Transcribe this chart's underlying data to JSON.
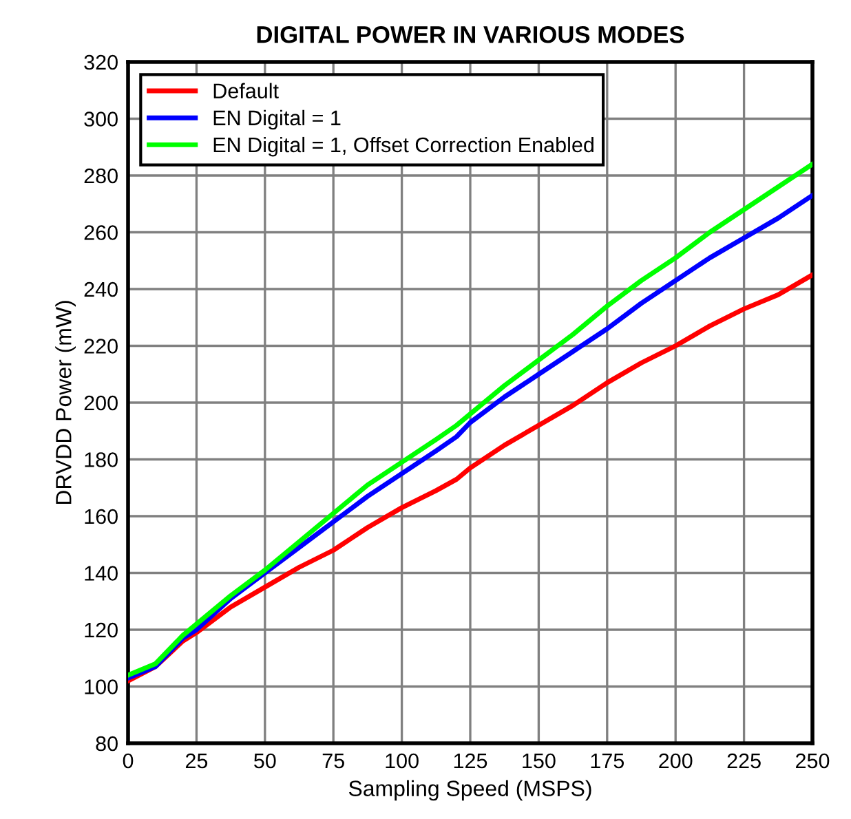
{
  "chart_data": {
    "type": "line",
    "title": "DIGITAL POWER IN VARIOUS MODES",
    "xlabel": "Sampling Speed (MSPS)",
    "ylabel": "DRVDD Power (mW)",
    "x": [
      0,
      10,
      20,
      25,
      37.5,
      50,
      62.5,
      75,
      87.5,
      100,
      112.5,
      120,
      125,
      137.5,
      150,
      162.5,
      175,
      187.5,
      200,
      212.5,
      225,
      237.5,
      250
    ],
    "series": [
      {
        "name": "Default",
        "color": "#ff0000",
        "values": [
          102,
          107,
          116,
          119,
          128,
          135,
          142,
          148,
          156,
          163,
          169,
          173,
          177,
          185,
          192,
          199,
          207,
          214,
          220,
          227,
          233,
          238,
          245
        ]
      },
      {
        "name": "EN Digital = 1",
        "color": "#0000ff",
        "values": [
          103,
          107,
          117,
          120,
          131,
          140,
          149,
          158,
          167,
          175,
          183,
          188,
          193,
          202,
          210,
          218,
          226,
          235,
          243,
          251,
          258,
          265,
          273
        ]
      },
      {
        "name": "EN Digital = 1, Offset Correction Enabled",
        "color": "#00ff00",
        "values": [
          104,
          108,
          118,
          122,
          132,
          141,
          151,
          161,
          171,
          179,
          187,
          192,
          196,
          206,
          215,
          224,
          234,
          243,
          251,
          260,
          268,
          276,
          284
        ]
      }
    ],
    "xlim": [
      0,
      250
    ],
    "xticks": [
      0,
      25,
      50,
      75,
      100,
      125,
      150,
      175,
      200,
      225,
      250
    ],
    "ylim": [
      80,
      320
    ],
    "yticks": [
      80,
      100,
      120,
      140,
      160,
      180,
      200,
      220,
      240,
      260,
      280,
      300,
      320
    ],
    "grid": true,
    "legend": "top left",
    "marker": "none",
    "line_style": "solid"
  }
}
